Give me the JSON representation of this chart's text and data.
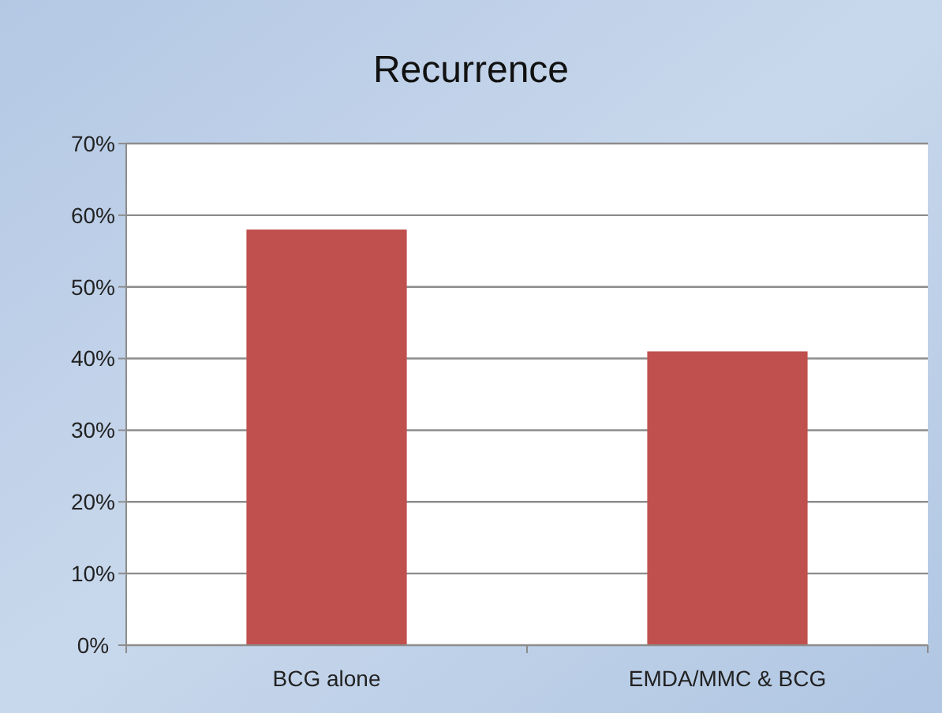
{
  "chart_data": {
    "type": "bar",
    "title": "Recurrence",
    "categories": [
      "BCG alone",
      "EMDA/MMC & BCG"
    ],
    "values": [
      58,
      41
    ],
    "color": "#c0504d",
    "ylim": [
      0,
      70
    ],
    "yticks": [
      {
        "value": 0,
        "label": "0%"
      },
      {
        "value": 10,
        "label": "10%"
      },
      {
        "value": 20,
        "label": "20%"
      },
      {
        "value": 30,
        "label": "30%"
      },
      {
        "value": 40,
        "label": "40%"
      },
      {
        "value": 50,
        "label": "50%"
      },
      {
        "value": 60,
        "label": "60%"
      },
      {
        "value": 70,
        "label": "70%"
      }
    ],
    "grid": "y"
  }
}
